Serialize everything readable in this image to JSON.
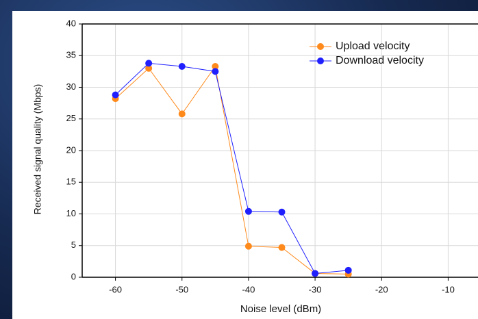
{
  "chart_data": {
    "type": "line",
    "x_label": "Noise level (dBm)",
    "y_label": "Received signal quality (Mbps)",
    "x": [
      -60,
      -55,
      -50,
      -45,
      -40,
      -35,
      -30,
      -25
    ],
    "series": [
      {
        "name": "Upload velocity",
        "color": "#ff8a1c",
        "values": [
          28.2,
          33,
          25.8,
          33.3,
          4.9,
          4.7,
          0.6,
          0.5
        ]
      },
      {
        "name": "Download velocity",
        "color": "#2020ff",
        "values": [
          28.8,
          33.8,
          33.3,
          32.5,
          10.4,
          10.3,
          0.6,
          1.1
        ]
      }
    ],
    "xlim": [
      -65,
      -5
    ],
    "xticks": [
      -60,
      -50,
      -40,
      -30,
      -20,
      -10
    ],
    "ylim": [
      0,
      40
    ],
    "yticks": [
      0,
      5,
      10,
      15,
      20,
      25,
      30,
      35,
      40
    ],
    "grid": true,
    "legend": "upper right"
  }
}
